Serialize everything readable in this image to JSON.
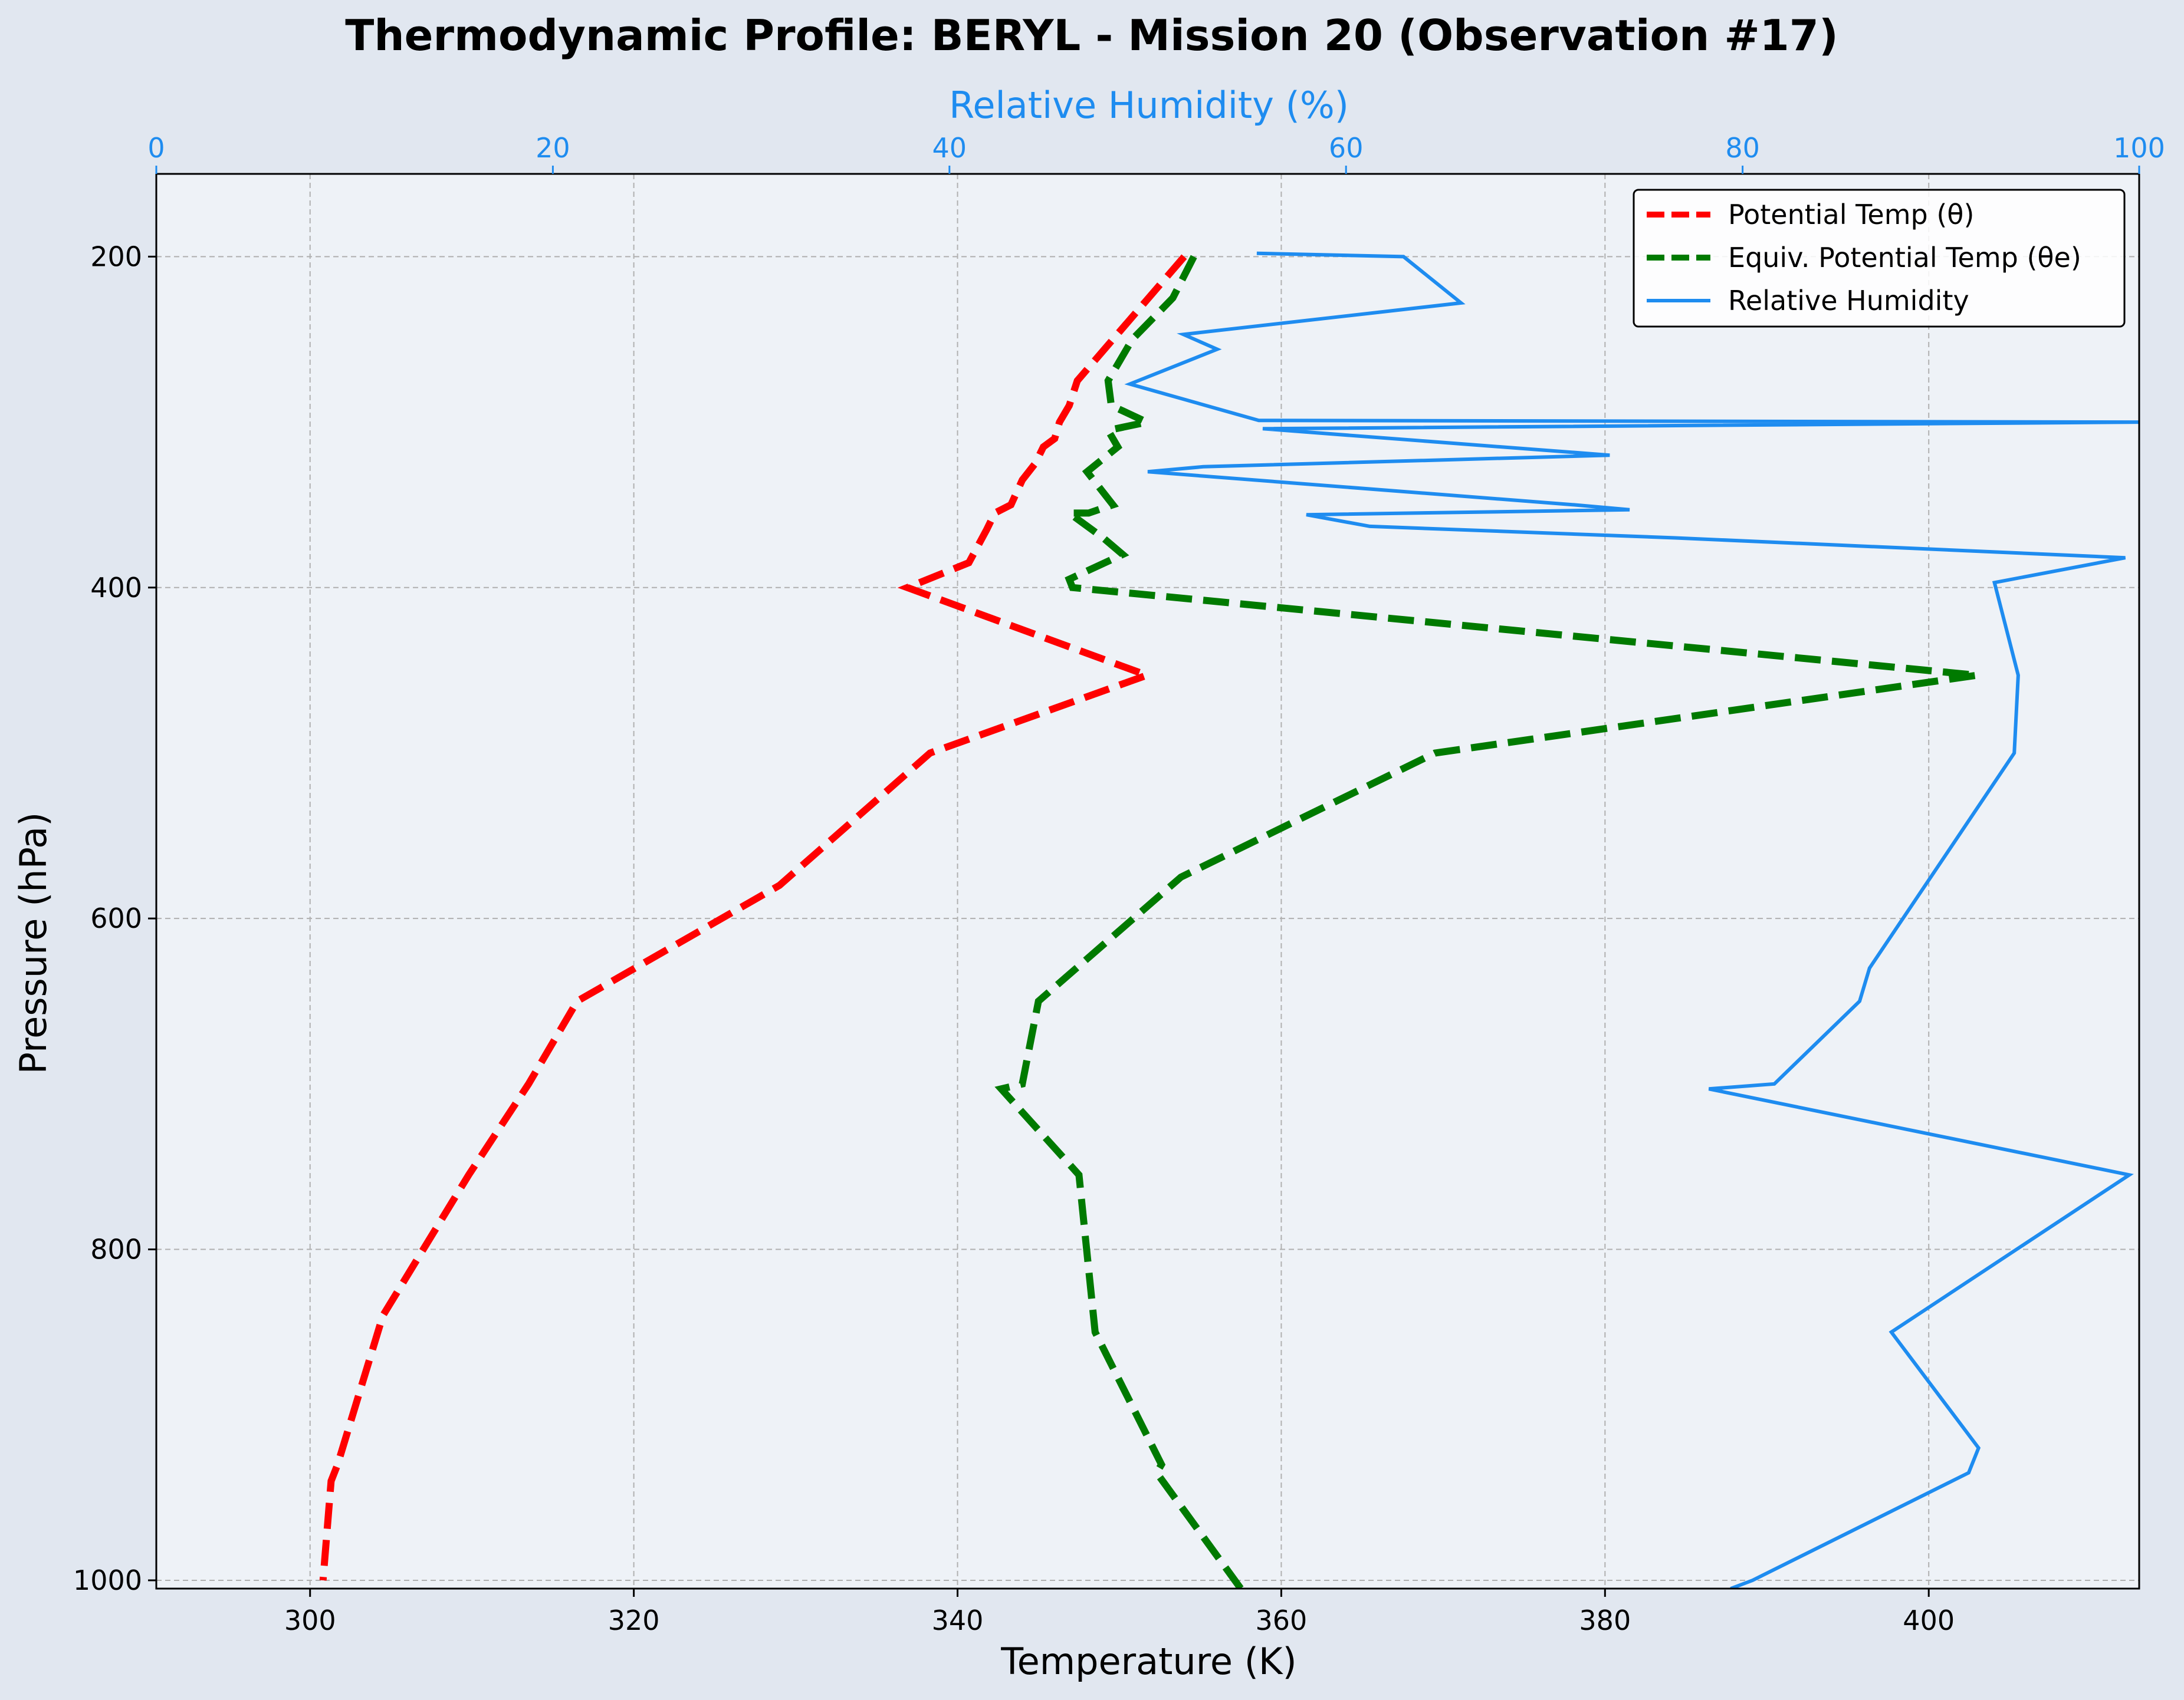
{
  "chart_data": {
    "type": "line",
    "title": "Thermodynamic Profile:  BERYL - Mission 20 (Observation #17)",
    "xlabel": "Temperature (K)",
    "ylabel": "Pressure (hPa)",
    "x2label": "Relative Humidity (%)",
    "xlim": [
      290.5,
      413
    ],
    "ylim": [
      1005,
      150
    ],
    "x2lim": [
      0,
      100
    ],
    "y_inverted": true,
    "grid": true,
    "legend_position": "top-right",
    "x_ticks": [
      "300",
      "320",
      "340",
      "360",
      "380",
      "400"
    ],
    "y_ticks": [
      "200",
      "400",
      "600",
      "800",
      "1000"
    ],
    "x2_ticks": [
      "0",
      "20",
      "40",
      "60",
      "80",
      "100"
    ],
    "colors": {
      "theta": "#ff0000",
      "theta_e": "#007a00",
      "rh": "#1e8cf0",
      "plot_bg": "#eef2f7",
      "page_bg": "#e1e7f0"
    },
    "series": [
      {
        "name": "Potential Temp (θ)",
        "axis": "temperature",
        "style": "dashed",
        "points": [
          [
            354.0,
            200
          ],
          [
            351.8,
            225
          ],
          [
            349.6,
            250
          ],
          [
            347.4,
            275
          ],
          [
            346.9,
            290
          ],
          [
            346.3,
            300
          ],
          [
            346.0,
            310
          ],
          [
            345.3,
            315
          ],
          [
            344.8,
            325
          ],
          [
            344.0,
            335
          ],
          [
            343.3,
            350
          ],
          [
            342.3,
            355
          ],
          [
            341.8,
            365
          ],
          [
            340.7,
            385
          ],
          [
            336.9,
            400
          ],
          [
            351.7,
            453
          ],
          [
            338.3,
            500
          ],
          [
            329.0,
            580
          ],
          [
            316.5,
            650
          ],
          [
            313.5,
            700
          ],
          [
            309.8,
            755
          ],
          [
            304.5,
            840
          ],
          [
            301.7,
            930
          ],
          [
            301.3,
            940
          ],
          [
            300.8,
            1000
          ]
        ]
      },
      {
        "name": "Equiv. Potential Temp (θe)",
        "axis": "temperature",
        "style": "dashed",
        "points": [
          [
            354.6,
            200
          ],
          [
            353.3,
            225
          ],
          [
            350.8,
            250
          ],
          [
            349.3,
            275
          ],
          [
            349.5,
            290
          ],
          [
            351.7,
            300
          ],
          [
            349.3,
            305
          ],
          [
            349.9,
            315
          ],
          [
            348.0,
            330
          ],
          [
            349.6,
            350
          ],
          [
            348.1,
            355
          ],
          [
            346.9,
            355
          ],
          [
            349.0,
            370
          ],
          [
            350.2,
            380
          ],
          [
            346.9,
            395
          ],
          [
            347.1,
            400
          ],
          [
            403.0,
            453
          ],
          [
            369.5,
            500
          ],
          [
            353.8,
            575
          ],
          [
            345.0,
            650
          ],
          [
            344.0,
            700
          ],
          [
            342.7,
            703
          ],
          [
            347.5,
            755
          ],
          [
            348.5,
            850
          ],
          [
            352.6,
            930
          ],
          [
            352.3,
            935
          ],
          [
            357.5,
            1005
          ]
        ]
      },
      {
        "name": "Relative Humidity",
        "axis": "rh",
        "style": "solid",
        "points": [
          [
            55.5,
            198
          ],
          [
            62.9,
            200
          ],
          [
            65.8,
            228
          ],
          [
            51.8,
            247
          ],
          [
            53.5,
            256
          ],
          [
            49.1,
            277
          ],
          [
            55.6,
            299
          ],
          [
            100.0,
            300
          ],
          [
            55.8,
            304
          ],
          [
            73.3,
            320
          ],
          [
            52.8,
            327
          ],
          [
            50.0,
            330
          ],
          [
            71.5,
            350
          ],
          [
            74.3,
            353
          ],
          [
            58.0,
            356
          ],
          [
            61.2,
            363
          ],
          [
            76.6,
            370
          ],
          [
            99.3,
            382
          ],
          [
            92.7,
            397
          ],
          [
            93.9,
            453
          ],
          [
            93.7,
            500
          ],
          [
            86.4,
            630
          ],
          [
            85.9,
            650
          ],
          [
            81.6,
            700
          ],
          [
            78.3,
            703
          ],
          [
            99.5,
            755
          ],
          [
            87.5,
            850
          ],
          [
            91.9,
            920
          ],
          [
            91.4,
            935
          ],
          [
            80.5,
            1000
          ],
          [
            79.4,
            1005
          ]
        ]
      }
    ]
  }
}
